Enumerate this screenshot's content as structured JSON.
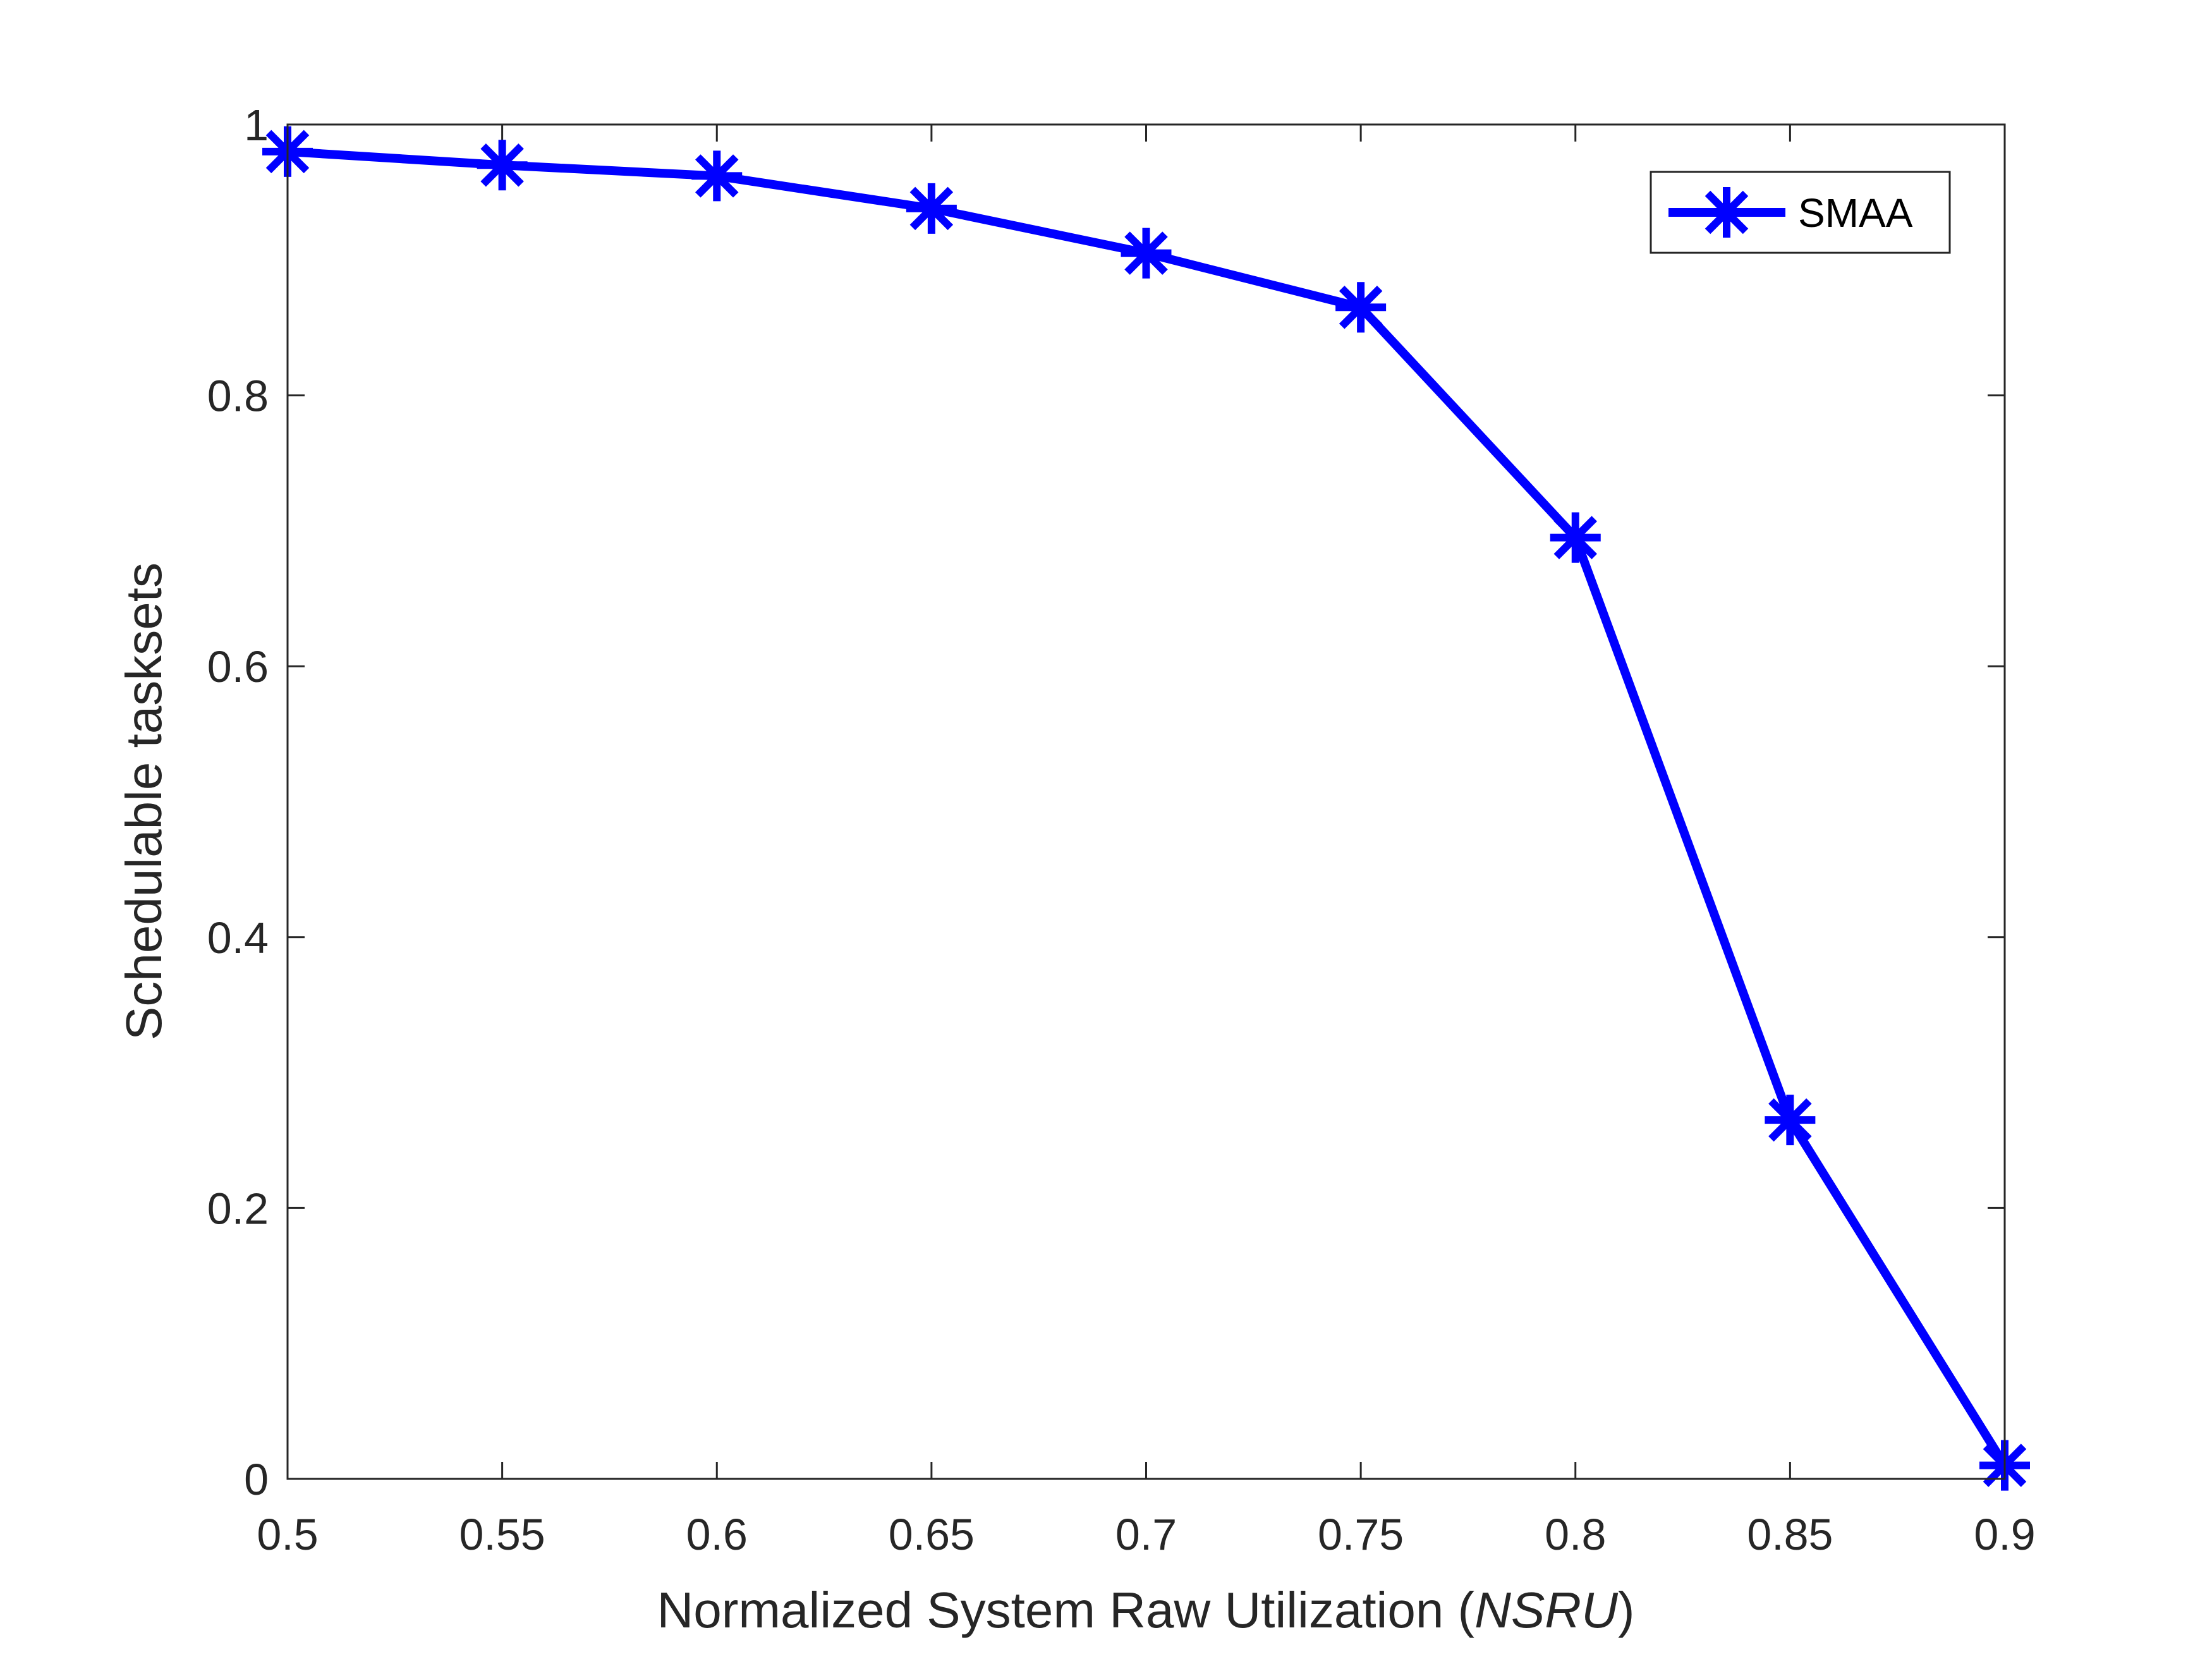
{
  "chart_data": {
    "type": "line",
    "title": "",
    "xlabel_prefix": "Normalized System Raw Utilization (",
    "xlabel_italic": "NSRU",
    "xlabel_suffix": ")",
    "ylabel": "Schedulable tasksets",
    "xlim": [
      0.5,
      0.9
    ],
    "ylim": [
      0,
      1
    ],
    "x_ticks": [
      0.5,
      0.55,
      0.6,
      0.65,
      0.7,
      0.75,
      0.8,
      0.85,
      0.9
    ],
    "x_tick_labels": [
      "0.5",
      "0.55",
      "0.6",
      "0.65",
      "0.7",
      "0.75",
      "0.8",
      "0.85",
      "0.9"
    ],
    "y_ticks": [
      0,
      0.2,
      0.4,
      0.6,
      0.8,
      1
    ],
    "y_tick_labels": [
      "0",
      "0.2",
      "0.4",
      "0.6",
      "0.8",
      "1"
    ],
    "grid": false,
    "legend_position": "top-right",
    "series": [
      {
        "name": "SMAA",
        "color": "#0000ff",
        "marker": "asterisk",
        "x": [
          0.5,
          0.55,
          0.6,
          0.65,
          0.7,
          0.75,
          0.8,
          0.85,
          0.9
        ],
        "y": [
          0.98,
          0.97,
          0.962,
          0.938,
          0.905,
          0.865,
          0.695,
          0.265,
          0.01
        ]
      }
    ]
  }
}
